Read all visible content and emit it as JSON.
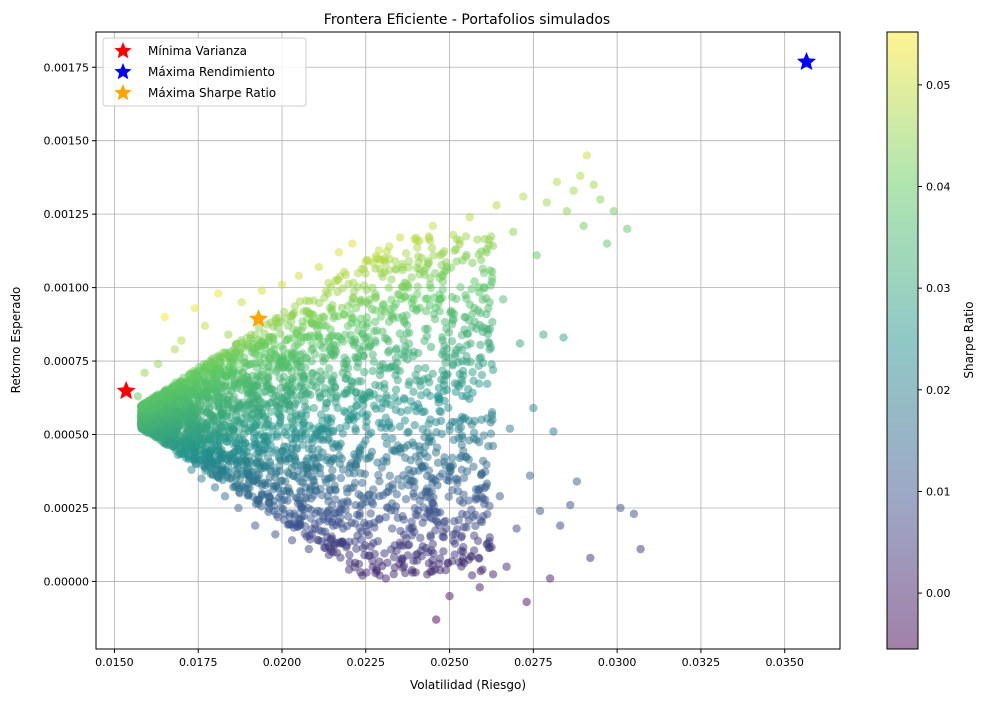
{
  "chart_data": {
    "type": "scatter",
    "title": "Frontera Eficiente - Portafolios simulados",
    "xlabel": "Volatilidad (Riesgo)",
    "ylabel": "Retorno Esperado",
    "xlim": [
      0.01445,
      0.03665
    ],
    "ylim": [
      -0.00023,
      0.00187
    ],
    "x_ticks": [
      {
        "value": 0.015,
        "label": "0.0150"
      },
      {
        "value": 0.0175,
        "label": "0.0175"
      },
      {
        "value": 0.02,
        "label": "0.0200"
      },
      {
        "value": 0.0225,
        "label": "0.0225"
      },
      {
        "value": 0.025,
        "label": "0.0250"
      },
      {
        "value": 0.0275,
        "label": "0.0275"
      },
      {
        "value": 0.03,
        "label": "0.0300"
      },
      {
        "value": 0.0325,
        "label": "0.0325"
      },
      {
        "value": 0.035,
        "label": "0.0350"
      }
    ],
    "y_ticks": [
      {
        "value": 0.0,
        "label": "0.00000"
      },
      {
        "value": 0.00025,
        "label": "0.00025"
      },
      {
        "value": 0.0005,
        "label": "0.00050"
      },
      {
        "value": 0.00075,
        "label": "0.00075"
      },
      {
        "value": 0.001,
        "label": "0.00100"
      },
      {
        "value": 0.00125,
        "label": "0.00125"
      },
      {
        "value": 0.0015,
        "label": "0.00150"
      },
      {
        "value": 0.00175,
        "label": "0.00175"
      }
    ],
    "grid": true,
    "legend_position": "top-left",
    "colormap": "viridis",
    "colorbar": {
      "label": "Sharpe Ratio",
      "range": [
        -0.0055,
        0.0552
      ],
      "ticks": [
        {
          "value": 0.0,
          "label": "0.00"
        },
        {
          "value": 0.01,
          "label": "0.01"
        },
        {
          "value": 0.02,
          "label": "0.02"
        },
        {
          "value": 0.03,
          "label": "0.03"
        },
        {
          "value": 0.04,
          "label": "0.04"
        },
        {
          "value": 0.05,
          "label": "0.05"
        }
      ]
    },
    "markers": [
      {
        "name": "Mínima Varianza",
        "x": 0.01535,
        "y": 0.000648,
        "color": "#ff0000"
      },
      {
        "name": "Máxima Rendimiento",
        "x": 0.03565,
        "y": 0.001768,
        "color": "#0000ff"
      },
      {
        "name": "Máxima Sharpe Ratio",
        "x": 0.0193,
        "y": 0.000893,
        "color": "#ffa500"
      }
    ],
    "portfolios": [
      [
        0.0157,
        0.00063
      ],
      [
        0.0159,
        0.00071
      ],
      [
        0.0161,
        0.00056
      ],
      [
        0.0163,
        0.00074
      ],
      [
        0.0165,
        0.0009
      ],
      [
        0.0166,
        0.00051
      ],
      [
        0.0168,
        0.00079
      ],
      [
        0.0169,
        0.00043
      ],
      [
        0.017,
        0.00082
      ],
      [
        0.0171,
        0.00047
      ],
      [
        0.0172,
        0.00065
      ],
      [
        0.0173,
        0.00038
      ],
      [
        0.0174,
        0.00093
      ],
      [
        0.0175,
        0.00058
      ],
      [
        0.0176,
        0.00035
      ],
      [
        0.0177,
        0.00087
      ],
      [
        0.0178,
        0.00044
      ],
      [
        0.0179,
        0.00071
      ],
      [
        0.018,
        0.00032
      ],
      [
        0.0181,
        0.00098
      ],
      [
        0.0182,
        0.00055
      ],
      [
        0.0183,
        0.00029
      ],
      [
        0.0184,
        0.00084
      ],
      [
        0.0185,
        0.00041
      ],
      [
        0.0186,
        0.00067
      ],
      [
        0.0187,
        0.00025
      ],
      [
        0.0188,
        0.00095
      ],
      [
        0.0189,
        0.00052
      ],
      [
        0.019,
        0.00036
      ],
      [
        0.0191,
        0.00078
      ],
      [
        0.0192,
        0.00019
      ],
      [
        0.0193,
        0.00062
      ],
      [
        0.0194,
        0.00099
      ],
      [
        0.0195,
        0.00045
      ],
      [
        0.0196,
        0.00027
      ],
      [
        0.0197,
        0.00083
      ],
      [
        0.0198,
        0.00016
      ],
      [
        0.0199,
        0.00057
      ],
      [
        0.02,
        0.00101
      ],
      [
        0.0201,
        0.00034
      ],
      [
        0.0202,
        0.00073
      ],
      [
        0.0203,
        0.00014
      ],
      [
        0.0204,
        0.00049
      ],
      [
        0.0205,
        0.00104
      ],
      [
        0.0206,
        0.00022
      ],
      [
        0.0207,
        0.00066
      ],
      [
        0.0208,
        0.00011
      ],
      [
        0.0209,
        0.00088
      ],
      [
        0.021,
        0.00038
      ],
      [
        0.0211,
        0.00107
      ],
      [
        0.0212,
        0.00017
      ],
      [
        0.0213,
        0.00059
      ],
      [
        0.0214,
        9e-05
      ],
      [
        0.0215,
        0.00094
      ],
      [
        0.0216,
        0.00031
      ],
      [
        0.0217,
        0.00112
      ],
      [
        0.0218,
        0.00013
      ],
      [
        0.0219,
        0.00069
      ],
      [
        0.022,
        4e-05
      ],
      [
        0.0221,
        0.00115
      ],
      [
        0.0222,
        0.00026
      ],
      [
        0.0223,
        0.00079
      ],
      [
        0.0224,
        2e-05
      ],
      [
        0.0225,
        0.00109
      ],
      [
        0.0226,
        0.00042
      ],
      [
        0.0227,
        7e-05
      ],
      [
        0.0228,
        0.00097
      ],
      [
        0.0229,
        0.00021
      ],
      [
        0.023,
        0.00085
      ],
      [
        0.0231,
        1e-05
      ],
      [
        0.0232,
        0.00114
      ],
      [
        0.0233,
        0.00033
      ],
      [
        0.0234,
        0.00076
      ],
      [
        0.0235,
        6e-05
      ],
      [
        0.0236,
        0.00106
      ],
      [
        0.0237,
        0.00028
      ],
      [
        0.0238,
        0.00068
      ],
      [
        0.0239,
        3e-05
      ],
      [
        0.024,
        0.00117
      ],
      [
        0.0241,
        0.00046
      ],
      [
        0.0242,
        0.00012
      ],
      [
        0.0243,
        0.00092
      ],
      [
        0.0244,
        0.00024
      ],
      [
        0.0245,
        0.00121
      ],
      [
        0.0246,
        -0.00013
      ],
      [
        0.0247,
        0.00058
      ],
      [
        0.0248,
        0.00102
      ],
      [
        0.0249,
        0.00018
      ],
      [
        0.025,
        -5e-05
      ],
      [
        0.0251,
        0.00074
      ],
      [
        0.0252,
        0.00035
      ],
      [
        0.0253,
        0.00116
      ],
      [
        0.0254,
        8e-05
      ],
      [
        0.0255,
        0.00063
      ],
      [
        0.0256,
        0.00124
      ],
      [
        0.0257,
        0.00022
      ],
      [
        0.0258,
        0.00086
      ],
      [
        0.0259,
        -2e-05
      ],
      [
        0.026,
        0.00041
      ],
      [
        0.0261,
        0.00113
      ],
      [
        0.0262,
        0.00015
      ],
      [
        0.0263,
        0.00072
      ],
      [
        0.0264,
        0.00128
      ],
      [
        0.0265,
        0.00029
      ],
      [
        0.0266,
        0.00096
      ],
      [
        0.0267,
        5e-05
      ],
      [
        0.0268,
        0.00052
      ],
      [
        0.0269,
        0.00119
      ],
      [
        0.027,
        0.00018
      ],
      [
        0.0271,
        0.00081
      ],
      [
        0.0272,
        0.00131
      ],
      [
        0.0273,
        -7e-05
      ],
      [
        0.0274,
        0.00036
      ],
      [
        0.0275,
        0.00059
      ],
      [
        0.0276,
        0.00111
      ],
      [
        0.0277,
        0.00024
      ],
      [
        0.0278,
        0.00084
      ],
      [
        0.0279,
        0.00129
      ],
      [
        0.028,
        1e-05
      ],
      [
        0.0281,
        0.00051
      ],
      [
        0.0282,
        0.00136
      ],
      [
        0.0283,
        0.00019
      ],
      [
        0.0284,
        0.00083
      ],
      [
        0.0285,
        0.00126
      ],
      [
        0.0286,
        0.00026
      ],
      [
        0.0287,
        0.00133
      ],
      [
        0.0288,
        0.00034
      ],
      [
        0.0289,
        0.00138
      ],
      [
        0.029,
        0.00121
      ],
      [
        0.0291,
        0.00145
      ],
      [
        0.0292,
        8e-05
      ],
      [
        0.0293,
        0.00135
      ],
      [
        0.0295,
        0.0013
      ],
      [
        0.0297,
        0.00115
      ],
      [
        0.0299,
        0.00126
      ],
      [
        0.0301,
        0.00025
      ],
      [
        0.0303,
        0.0012
      ],
      [
        0.0305,
        0.00023
      ],
      [
        0.0307,
        0.00011
      ]
    ]
  }
}
